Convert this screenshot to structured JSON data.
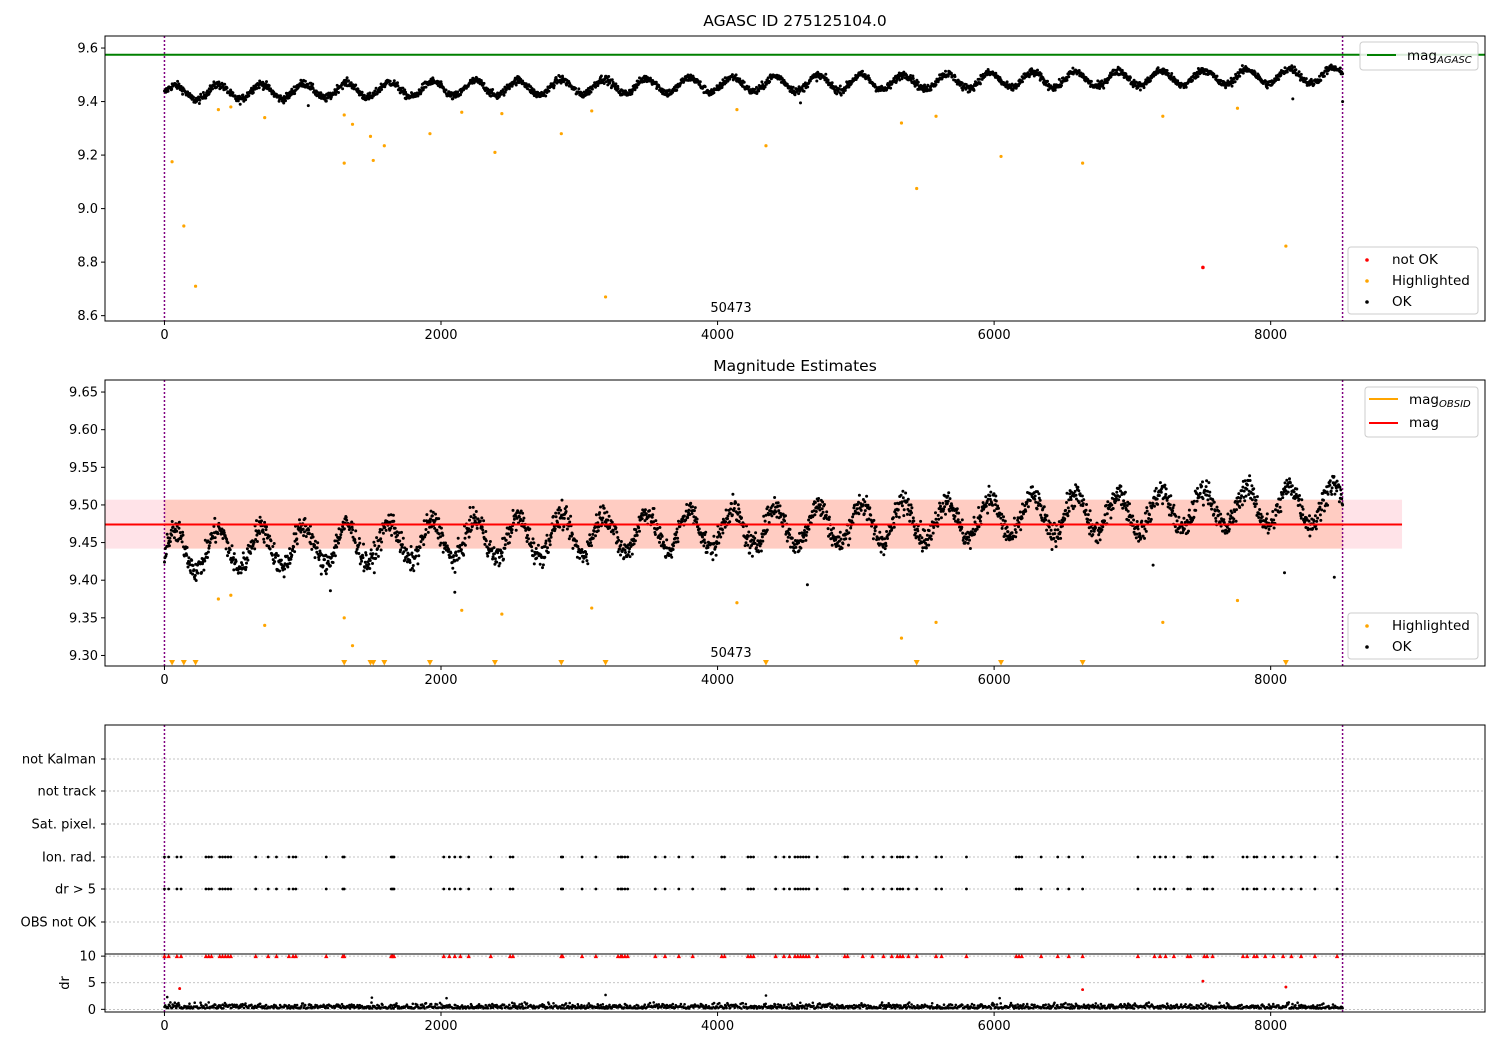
{
  "colors": {
    "ok": "#000000",
    "highlighted": "#ffa500",
    "not_ok": "#ff0000",
    "mag_agasc": "#008000",
    "mag": "#ff0000",
    "mag_obsid": "#ffa500",
    "band_outer": "#ffc0cb",
    "band_inner": "#ffa07a",
    "obs_boundary": "#800080"
  },
  "chart_data": [
    {
      "type": "scatter",
      "title": "AGASC ID 275125104.0",
      "xlim": [
        -430,
        9550
      ],
      "ylim": [
        8.58,
        9.645
      ],
      "x_ticks": [
        0,
        2000,
        4000,
        6000,
        8000
      ],
      "y_ticks": [
        8.6,
        8.8,
        9.0,
        9.2,
        9.4,
        9.6
      ],
      "obs_boundaries": [
        0,
        8520
      ],
      "obs_label": "50473",
      "legend_upper_right": [
        {
          "name": "mag",
          "sub": "AGASC",
          "kind": "line",
          "color": "#008000"
        }
      ],
      "legend_lower_right": [
        {
          "name": "not OK",
          "kind": "marker",
          "color": "#ff0000"
        },
        {
          "name": "Highlighted",
          "kind": "marker",
          "color": "#ffa500"
        },
        {
          "name": "OK",
          "kind": "marker",
          "color": "#000000"
        }
      ],
      "mag_agasc": 9.575,
      "ok_model": {
        "x_start": 0,
        "x_end": 8520,
        "base_start": 9.432,
        "base_end": 9.498,
        "amplitude": 0.028,
        "period": 310,
        "noise": 0.012,
        "count": 2600,
        "outliers": [
          [
            1040,
            9.385
          ],
          [
            4600,
            9.395
          ],
          [
            8160,
            9.41
          ],
          [
            8520,
            9.4
          ]
        ]
      },
      "highlighted": [
        [
          55,
          9.175
        ],
        [
          140,
          8.935
        ],
        [
          225,
          8.71
        ],
        [
          390,
          9.37
        ],
        [
          480,
          9.38
        ],
        [
          725,
          9.34
        ],
        [
          1300,
          9.35
        ],
        [
          1300,
          9.17
        ],
        [
          1360,
          9.315
        ],
        [
          1490,
          9.27
        ],
        [
          1510,
          9.18
        ],
        [
          1590,
          9.235
        ],
        [
          1920,
          9.28
        ],
        [
          2150,
          9.36
        ],
        [
          2390,
          9.21
        ],
        [
          2440,
          9.355
        ],
        [
          2870,
          9.28
        ],
        [
          3090,
          9.365
        ],
        [
          3190,
          8.67
        ],
        [
          4140,
          9.37
        ],
        [
          4350,
          9.235
        ],
        [
          5330,
          9.32
        ],
        [
          5440,
          9.075
        ],
        [
          5580,
          9.345
        ],
        [
          6050,
          9.195
        ],
        [
          6640,
          9.17
        ],
        [
          7220,
          9.345
        ],
        [
          7760,
          9.375
        ],
        [
          8110,
          8.86
        ]
      ],
      "not_ok": [
        [
          7510,
          8.78
        ]
      ]
    },
    {
      "type": "scatter",
      "title": "Magnitude Estimates",
      "xlim": [
        -430,
        9550
      ],
      "ylim": [
        9.286,
        9.666
      ],
      "x_ticks": [
        0,
        2000,
        4000,
        6000,
        8000
      ],
      "y_ticks": [
        9.3,
        9.35,
        9.4,
        9.45,
        9.5,
        9.55,
        9.6,
        9.65
      ],
      "y_tick_labels": [
        "9.30",
        "9.35",
        "9.40",
        "9.45",
        "9.50",
        "9.55",
        "9.60",
        "9.65"
      ],
      "obs_boundaries": [
        0,
        8520
      ],
      "obs_label": "50473",
      "legend_upper_right": [
        {
          "name": "mag",
          "sub": "OBSID",
          "kind": "line",
          "color": "#ffa500"
        },
        {
          "name": "mag",
          "kind": "line",
          "color": "#ff0000"
        }
      ],
      "legend_lower_right": [
        {
          "name": "Highlighted",
          "kind": "marker",
          "color": "#ffa500"
        },
        {
          "name": "OK",
          "kind": "marker",
          "color": "#000000"
        }
      ],
      "mag": 9.474,
      "mag_obsid": 9.474,
      "band_outer": {
        "x": [
          -430,
          8950
        ],
        "y": [
          9.442,
          9.507
        ]
      },
      "band_inner": {
        "x": [
          0,
          8520
        ],
        "y": [
          9.442,
          9.507
        ]
      },
      "ok_model": {
        "x_start": 0,
        "x_end": 8520,
        "base_start": 9.438,
        "base_end": 9.502,
        "amplitude": 0.026,
        "period": 310,
        "noise": 0.013,
        "count": 2600,
        "outliers": [
          [
            1200,
            9.386
          ],
          [
            2100,
            9.384
          ],
          [
            4650,
            9.394
          ],
          [
            7150,
            9.42
          ],
          [
            8100,
            9.41
          ],
          [
            8460,
            9.404
          ]
        ]
      },
      "highlighted": [
        [
          390,
          9.375
        ],
        [
          480,
          9.38
        ],
        [
          725,
          9.34
        ],
        [
          1300,
          9.35
        ],
        [
          1360,
          9.313
        ],
        [
          2150,
          9.36
        ],
        [
          2440,
          9.355
        ],
        [
          3090,
          9.363
        ],
        [
          4140,
          9.37
        ],
        [
          5330,
          9.323
        ],
        [
          5580,
          9.344
        ],
        [
          7220,
          9.344
        ],
        [
          7760,
          9.373
        ]
      ],
      "lower_limit_markers": [
        55,
        140,
        225,
        1300,
        1490,
        1510,
        1590,
        1920,
        2390,
        2870,
        3190,
        4350,
        5440,
        6050,
        6640,
        8110
      ]
    },
    {
      "type": "scatter",
      "title": "",
      "xlim": [
        -430,
        9550
      ],
      "x_ticks": [
        0,
        2000,
        4000,
        6000,
        8000
      ],
      "obs_boundaries": [
        0,
        8520
      ],
      "flag_rows": [
        "not Kalman",
        "not track",
        "Sat. pixel.",
        "Ion. rad.",
        "dr > 5",
        "OBS not OK"
      ],
      "flag_times": [
        0,
        30,
        90,
        120,
        300,
        320,
        340,
        400,
        420,
        440,
        460,
        480,
        660,
        750,
        810,
        900,
        930,
        950,
        1170,
        1290,
        1300,
        1640,
        1650,
        1660,
        2020,
        2060,
        2100,
        2140,
        2200,
        2360,
        2500,
        2520,
        2870,
        2880,
        3020,
        3120,
        3280,
        3300,
        3310,
        3330,
        3350,
        3550,
        3620,
        3720,
        3820,
        4030,
        4050,
        4220,
        4240,
        4260,
        4420,
        4480,
        4520,
        4560,
        4580,
        4600,
        4620,
        4640,
        4660,
        4720,
        4920,
        4940,
        5050,
        5120,
        5200,
        5260,
        5300,
        5320,
        5340,
        5380,
        5440,
        5580,
        5620,
        5800,
        6160,
        6180,
        6200,
        6340,
        6460,
        6540,
        6640,
        7040,
        7160,
        7200,
        7240,
        7300,
        7400,
        7420,
        7520,
        7540,
        7580,
        7800,
        7830,
        7880,
        7900,
        7960,
        8020,
        8090,
        8150,
        8220,
        8320,
        8480
      ],
      "dr": {
        "ylabel": "dr",
        "ylim": [
          -0.5,
          10.4
        ],
        "y_ticks": [
          0,
          5,
          10
        ],
        "clipped_value": 10,
        "base_max": 1.3,
        "count": 1600,
        "scatter_points": [
          [
            20,
            2.3
          ],
          [
            110,
            3.9
          ],
          [
            1500,
            2.2
          ],
          [
            2040,
            2.1
          ],
          [
            3190,
            2.7
          ],
          [
            4350,
            2.6
          ],
          [
            6040,
            2.1
          ],
          [
            6640,
            3.7
          ],
          [
            7510,
            5.3
          ],
          [
            8110,
            4.2
          ]
        ],
        "red_points": [
          [
            110,
            3.9
          ],
          [
            6640,
            3.7
          ],
          [
            7510,
            5.3
          ],
          [
            8110,
            4.2
          ]
        ]
      }
    }
  ]
}
